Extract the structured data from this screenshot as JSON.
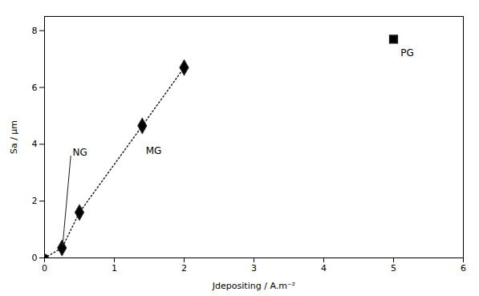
{
  "chart_data": {
    "type": "scatter",
    "x_label": "Jdepositing / A.m⁻²",
    "y_label": "Sa / µm",
    "series": [
      {
        "type": "line",
        "line_style": "dotted",
        "color": "#1a1a1a",
        "x": [
          0.0,
          0.25,
          0.5,
          1.4,
          2.0
        ],
        "values": [
          0.0,
          0.35,
          1.6,
          4.65,
          6.7
        ]
      },
      {
        "type": "scatter",
        "marker": "circle",
        "color": "#1a1a1a",
        "x": [
          0.0
        ],
        "values": [
          0.0
        ]
      },
      {
        "type": "scatter",
        "marker": "diamond",
        "color": "#1a1a1a",
        "x": [
          0.25,
          0.5,
          1.4,
          2.0
        ],
        "values": [
          0.35,
          1.6,
          4.65,
          6.7
        ]
      },
      {
        "type": "scatter",
        "marker": "square",
        "color": "#1a1a1a",
        "x": [
          5.0
        ],
        "values": [
          7.7
        ]
      }
    ],
    "annotations": [
      {
        "text": "NG",
        "x": 0.38,
        "y": 3.7,
        "arrow_x": 0.26,
        "arrow_y": 0.45
      },
      {
        "text": "MG",
        "x": 1.45,
        "y": 3.9
      },
      {
        "text": "PG",
        "x": 5.1,
        "y": 7.35
      }
    ],
    "xlim": [
      0,
      6
    ],
    "ylim": [
      0,
      8.5
    ],
    "xticks": [
      0,
      1,
      2,
      3,
      4,
      5,
      6
    ],
    "yticks": [
      0,
      2,
      4,
      6,
      8
    ],
    "grid": false
  }
}
